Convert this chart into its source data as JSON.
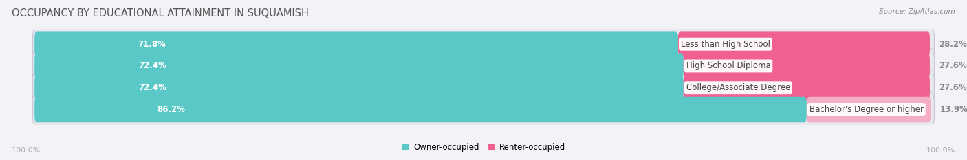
{
  "title": "OCCUPANCY BY EDUCATIONAL ATTAINMENT IN SUQUAMISH",
  "source": "Source: ZipAtlas.com",
  "categories": [
    "Less than High School",
    "High School Diploma",
    "College/Associate Degree",
    "Bachelor's Degree or higher"
  ],
  "owner_values": [
    71.8,
    72.4,
    72.4,
    86.2
  ],
  "renter_values": [
    28.2,
    27.6,
    27.6,
    13.9
  ],
  "owner_color": "#5bc8c8",
  "renter_colors": [
    "#f06090",
    "#f06090",
    "#f06090",
    "#f4aec8"
  ],
  "bar_bg_color": "#e8e8ee",
  "bar_bg_edge_color": "#d0d0dc",
  "owner_label": "Owner-occupied",
  "renter_label": "Renter-occupied",
  "bar_height": 0.62,
  "total": 100.0,
  "axis_label_left": "100.0%",
  "axis_label_right": "100.0%",
  "background_color": "#f2f2f7",
  "title_fontsize": 10.5,
  "source_fontsize": 7.5,
  "value_fontsize": 8.5,
  "category_fontsize": 8.5,
  "legend_fontsize": 8.5
}
